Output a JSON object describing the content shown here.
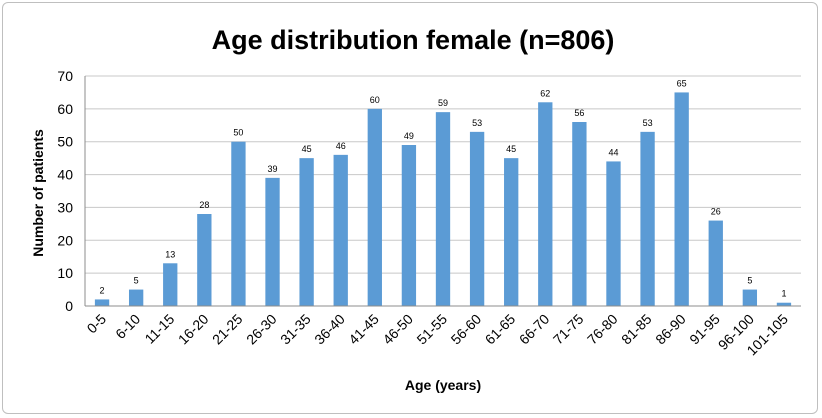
{
  "chart_data": {
    "type": "bar",
    "title": "Age distribution female (n=806)",
    "xlabel": "Age (years)",
    "ylabel": "Number of patients",
    "ylim": [
      0,
      70
    ],
    "yticks": [
      0,
      10,
      20,
      30,
      40,
      50,
      60,
      70
    ],
    "grid": true,
    "bar_color": "#5b9bd5",
    "categories": [
      "0-5",
      "6-10",
      "11-15",
      "16-20",
      "21-25",
      "26-30",
      "31-35",
      "36-40",
      "41-45",
      "46-50",
      "51-55",
      "56-60",
      "61-65",
      "66-70",
      "71-75",
      "76-80",
      "81-85",
      "86-90",
      "91-95",
      "96-100",
      "101-105"
    ],
    "values": [
      2,
      5,
      13,
      28,
      50,
      39,
      45,
      46,
      60,
      49,
      59,
      53,
      45,
      62,
      56,
      44,
      53,
      65,
      26,
      5,
      1
    ]
  }
}
